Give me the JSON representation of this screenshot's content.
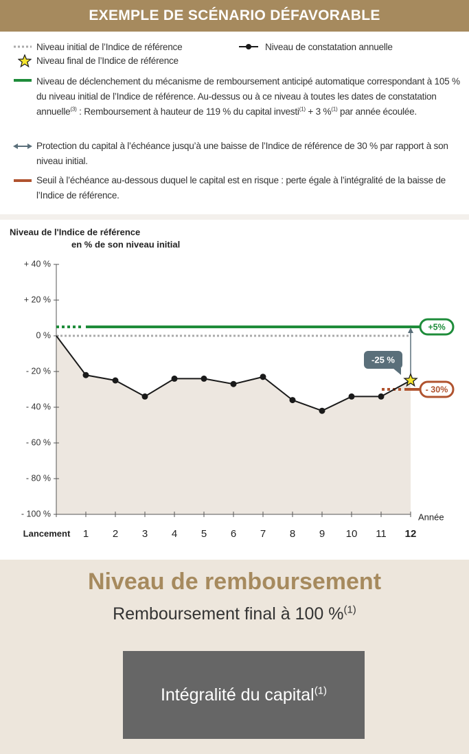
{
  "header": {
    "title": "EXEMPLE DE SCÉNARIO DÉFAVORABLE"
  },
  "legend": [
    [
      "Niveau initial de l’Indice de référence"
    ],
    [
      "Niveau de constatation annuelle"
    ],
    [
      "Niveau final de l’Indice de référence"
    ],
    [
      "Niveau de déclenchement du mécanisme de remboursement anticipé automatique correspondant à 105 % du niveau initial de l’Indice de référence. Au-dessus ou à ce niveau à toutes les dates de constatation annuelle",
      "(3)",
      " : Remboursement à hauteur de 119 % du capital investi",
      "(1)",
      " + 3 %",
      "(1)",
      " par année écoulée."
    ],
    [
      "Protection du capital à l’échéance jusqu’à une baisse de l’Indice de référence de 30 % par rapport à son niveau initial."
    ],
    [
      "Seuil à l’échéance au-dessous duquel le capital est en risque : perte égale à l’intégralité de la baisse de l’Indice de référence."
    ]
  ],
  "chart_data": {
    "type": "line",
    "y_label": [
      "Niveau de l'Indice de référence",
      "en % de son niveau initial"
    ],
    "x_label": "Année",
    "categories": [
      "Lancement",
      "1",
      "2",
      "3",
      "4",
      "5",
      "6",
      "7",
      "8",
      "9",
      "10",
      "11",
      "12"
    ],
    "series": [
      {
        "color": "#1a1a1a",
        "values": [
          0,
          -22,
          -25,
          -34,
          -24,
          -24,
          -27,
          -23,
          -36,
          -42,
          -34,
          -34,
          -25
        ],
        "value_labels": [
          null,
          null,
          null,
          null,
          null,
          null,
          null,
          null,
          null,
          null,
          null,
          null,
          "-25 %"
        ]
      }
    ],
    "ylim": [
      -100,
      40
    ],
    "yticks": [
      {
        "value": 40,
        "label": "+ 40 %"
      },
      {
        "value": 20,
        "label": "+ 20 %"
      },
      {
        "value": 0,
        "label": "0 %"
      },
      {
        "value": -20,
        "label": "- 20 %"
      },
      {
        "value": -40,
        "label": "- 40 %"
      },
      {
        "value": -60,
        "label": "- 60 %"
      },
      {
        "value": -80,
        "label": "- 80 %"
      },
      {
        "value": -100,
        "label": "- 100 %"
      }
    ],
    "reference_lines": [
      {
        "value": 5,
        "label": "+5%",
        "color": "#1e8c3a"
      },
      {
        "value": 0,
        "color": "#aaaaaa"
      },
      {
        "value": -30,
        "label": "- 30%",
        "color": "#b0532f"
      }
    ],
    "area_color": "#ede7e0"
  },
  "result": {
    "title": "Niveau de remboursement",
    "subtitle": [
      "Remboursement final à 100 %",
      "(1)"
    ],
    "box": [
      "Intégralité du capital",
      "(1)"
    ]
  }
}
